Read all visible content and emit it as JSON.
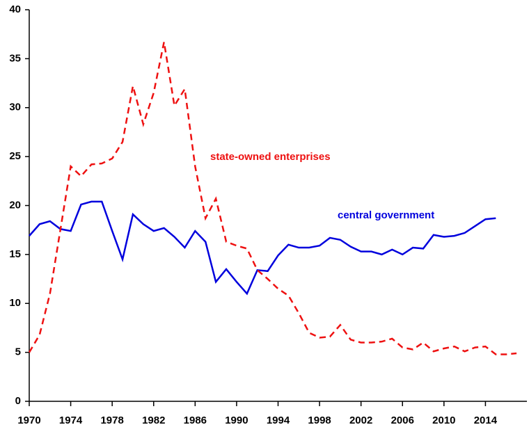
{
  "chart_data": {
    "type": "line",
    "x": [
      1970,
      1971,
      1972,
      1973,
      1974,
      1975,
      1976,
      1977,
      1978,
      1979,
      1980,
      1981,
      1982,
      1983,
      1984,
      1985,
      1986,
      1987,
      1988,
      1989,
      1990,
      1991,
      1992,
      1993,
      1994,
      1995,
      1996,
      1997,
      1998,
      1999,
      2000,
      2001,
      2002,
      2003,
      2004,
      2005,
      2006,
      2007,
      2008,
      2009,
      2010,
      2011,
      2012,
      2013,
      2014,
      2015,
      2016,
      2017
    ],
    "series": [
      {
        "name": "central government",
        "color": "#0000dd",
        "dashed": false,
        "values": [
          16.9,
          18.1,
          18.4,
          17.6,
          17.4,
          20.1,
          20.4,
          20.4,
          17.4,
          14.5,
          19.1,
          18.1,
          17.4,
          17.7,
          16.8,
          15.7,
          17.4,
          16.3,
          12.2,
          13.5,
          12.2,
          11.0,
          13.4,
          13.3,
          14.9,
          16.0,
          15.7,
          15.7,
          15.9,
          16.7,
          16.5,
          15.8,
          15.3,
          15.3,
          15.0,
          15.5,
          15.0,
          15.7,
          15.6,
          17.0,
          16.8,
          16.9,
          17.2,
          17.9,
          18.6,
          18.7,
          null,
          null
        ]
      },
      {
        "name": "state-owned enterprises",
        "color": "#ee1111",
        "dashed": true,
        "values": [
          5.0,
          6.8,
          11.0,
          17.5,
          24.0,
          23.0,
          24.2,
          24.3,
          24.8,
          26.5,
          32.2,
          28.3,
          31.5,
          36.7,
          30.2,
          31.9,
          24.0,
          18.7,
          20.7,
          16.3,
          15.9,
          15.6,
          13.4,
          12.5,
          11.5,
          10.8,
          9.0,
          7.0,
          6.5,
          6.6,
          7.8,
          6.3,
          6.0,
          6.0,
          6.1,
          6.4,
          5.5,
          5.3,
          6.0,
          5.1,
          5.4,
          5.6,
          5.1,
          5.5,
          5.6,
          4.8,
          4.8,
          4.9
        ]
      }
    ],
    "xlim": [
      1970,
      2018
    ],
    "xticks": [
      1970,
      1974,
      1978,
      1982,
      1986,
      1990,
      1994,
      1998,
      2002,
      2006,
      2010,
      2014
    ],
    "ylim": [
      0,
      40
    ],
    "yticks": [
      0,
      5,
      10,
      15,
      20,
      25,
      30,
      35,
      40
    ]
  }
}
